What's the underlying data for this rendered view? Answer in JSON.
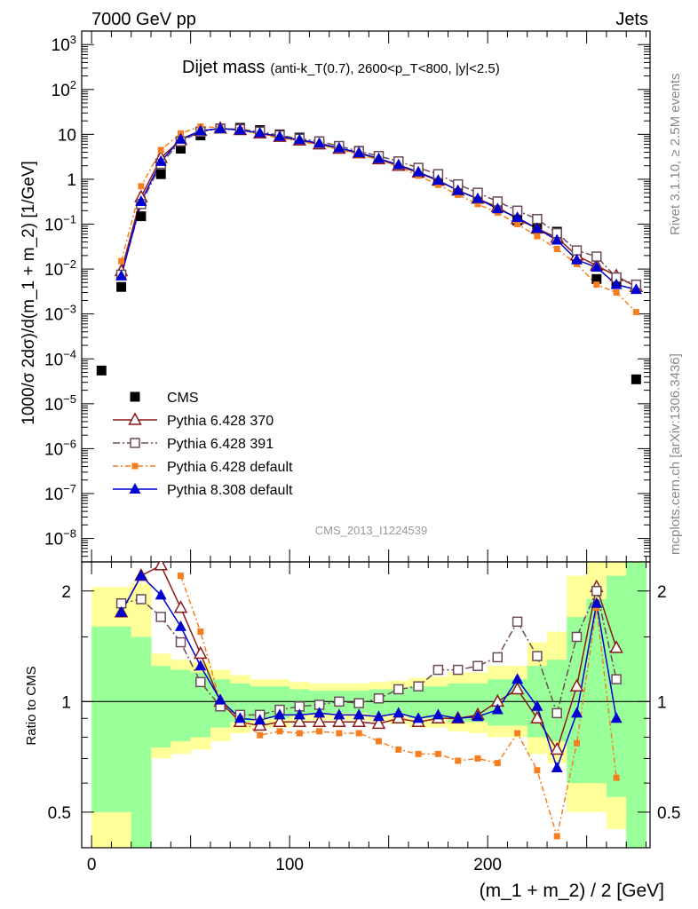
{
  "header": {
    "left": "7000 GeV pp",
    "right": "Jets",
    "side_top": "Rivet 3.1.10, ≥ 2.5M events",
    "side_bottom": "mcplots.cern.ch [arXiv:1306.3436]",
    "analysis": "CMS_2013_I1224539"
  },
  "colors": {
    "cms": "#000000",
    "p6_370": "#8b1a1a",
    "p6_391": "#6b4a5a",
    "p6_default": "#f57f20",
    "p8_default": "#0000d0",
    "band_inner": "#99ff99",
    "band_outer": "#ffff99"
  },
  "chart_data": [
    {
      "type": "line",
      "title_main": "Dijet mass",
      "title_sub": "(anti-k_T(0.7), 2600<p_T<800, |y|<2.5)",
      "ylabel": "1000/σ 2dσ)/d(m_1 + m_2) [1/GeV]",
      "xlim": [
        -5,
        282
      ],
      "ylim": [
        3e-09,
        2000
      ],
      "yscale": "log",
      "yticks": [
        "10^{-8}",
        "10^{-7}",
        "10^{-6}",
        "10^{-5}",
        "10^{-4}",
        "10^{-3}",
        "10^{-2}",
        "10^{-1}",
        "1",
        "10",
        "10^{2}",
        "10^{3}"
      ],
      "legend_position": "lower-left",
      "x": [
        5,
        15,
        25,
        35,
        45,
        55,
        65,
        75,
        85,
        95,
        105,
        115,
        125,
        135,
        145,
        155,
        165,
        175,
        185,
        195,
        205,
        215,
        225,
        235,
        245,
        255,
        265,
        275
      ],
      "series": [
        {
          "name": "CMS",
          "marker": "square-filled",
          "color": "#000000",
          "values": [
            5.5e-05,
            0.004,
            0.15,
            1.3,
            4.8,
            9.5,
            13.5,
            14.0,
            12.5,
            10.0,
            8.5,
            7.0,
            5.5,
            4.3,
            3.2,
            2.3,
            1.6,
            1.05,
            0.62,
            0.4,
            0.24,
            0.12,
            0.083,
            0.068,
            0.017,
            0.006,
            0.005,
            3.5e-05
          ]
        },
        {
          "name": "Pythia 6.428 370",
          "marker": "triangle-open",
          "color": "#8b1a1a",
          "values": [
            null,
            0.009,
            0.4,
            3.0,
            7.5,
            12.0,
            13.5,
            12.5,
            10.5,
            8.8,
            7.3,
            6.0,
            4.8,
            3.8,
            2.8,
            2.0,
            1.4,
            0.93,
            0.56,
            0.37,
            0.24,
            0.13,
            0.08,
            0.05,
            0.02,
            0.012,
            0.007,
            0.004
          ]
        },
        {
          "name": "Pythia 6.428 391",
          "marker": "square-open",
          "color": "#6b4a5a",
          "values": [
            null,
            0.0075,
            0.28,
            2.2,
            7.0,
            11.5,
            13.5,
            13.0,
            11.5,
            9.5,
            8.0,
            7.0,
            5.5,
            4.2,
            3.3,
            2.5,
            1.8,
            1.3,
            0.77,
            0.5,
            0.32,
            0.2,
            0.13,
            0.063,
            0.026,
            0.019,
            0.0065,
            0.0045
          ]
        },
        {
          "name": "Pythia 6.428 default",
          "marker": "square-small",
          "color": "#f57f20",
          "values": [
            null,
            0.015,
            0.7,
            4.5,
            10.5,
            15.0,
            14.0,
            12.5,
            10.0,
            8.3,
            7.0,
            5.8,
            4.6,
            3.6,
            2.7,
            1.9,
            1.2,
            0.75,
            0.45,
            0.28,
            0.18,
            0.1,
            0.054,
            0.028,
            0.013,
            0.0045,
            0.003,
            0.0011
          ]
        },
        {
          "name": "Pythia 8.308 default",
          "marker": "triangle-filled",
          "color": "#0000d0",
          "values": [
            null,
            0.007,
            0.32,
            2.5,
            7.8,
            12.0,
            13.5,
            12.5,
            10.8,
            9.0,
            7.6,
            6.3,
            5.0,
            3.9,
            2.9,
            2.1,
            1.45,
            0.95,
            0.56,
            0.37,
            0.22,
            0.14,
            0.08,
            0.044,
            0.016,
            0.011,
            0.0045,
            0.0035
          ]
        }
      ]
    },
    {
      "type": "line",
      "ylabel": "Ratio to CMS",
      "xlabel": "(m_1 + m_2) / 2 [GeV]",
      "xlim": [
        -5,
        282
      ],
      "ylim": [
        0.4,
        2.4
      ],
      "yscale": "log",
      "yticks": [
        "0.5",
        "1",
        "2"
      ],
      "xticks": [
        "0",
        "100",
        "200"
      ],
      "x": [
        15,
        25,
        35,
        45,
        55,
        65,
        75,
        85,
        95,
        105,
        115,
        125,
        135,
        145,
        155,
        165,
        175,
        185,
        195,
        205,
        215,
        225,
        235,
        245,
        255,
        265
      ],
      "band_edges": [
        0,
        10,
        20,
        30,
        40,
        50,
        60,
        70,
        80,
        90,
        100,
        110,
        120,
        130,
        140,
        150,
        160,
        170,
        180,
        190,
        200,
        210,
        220,
        230,
        240,
        250,
        260,
        270,
        280
      ],
      "band_inner_low": [
        0.5,
        0.5,
        0.4,
        0.75,
        0.78,
        0.8,
        0.85,
        0.88,
        0.9,
        0.9,
        0.92,
        0.93,
        0.93,
        0.93,
        0.92,
        0.92,
        0.9,
        0.9,
        0.88,
        0.88,
        0.86,
        0.86,
        0.8,
        0.78,
        0.6,
        0.6,
        0.55,
        0.4
      ],
      "band_inner_high": [
        1.6,
        1.6,
        1.5,
        1.25,
        1.22,
        1.2,
        1.15,
        1.12,
        1.1,
        1.1,
        1.08,
        1.07,
        1.07,
        1.07,
        1.08,
        1.08,
        1.1,
        1.1,
        1.12,
        1.12,
        1.15,
        1.15,
        1.25,
        1.3,
        1.7,
        1.9,
        2.2,
        2.5
      ],
      "band_outer_low": [
        0.4,
        0.4,
        0.3,
        0.7,
        0.72,
        0.74,
        0.78,
        0.82,
        0.85,
        0.85,
        0.88,
        0.89,
        0.89,
        0.89,
        0.88,
        0.87,
        0.85,
        0.85,
        0.83,
        0.82,
        0.8,
        0.8,
        0.72,
        0.68,
        0.5,
        0.5,
        0.45,
        0.35
      ],
      "band_outer_high": [
        2.05,
        2.05,
        2.1,
        1.35,
        1.3,
        1.28,
        1.22,
        1.18,
        1.15,
        1.15,
        1.13,
        1.12,
        1.12,
        1.12,
        1.13,
        1.14,
        1.16,
        1.17,
        1.2,
        1.2,
        1.25,
        1.25,
        1.45,
        1.55,
        2.2,
        2.5,
        2.8,
        3.0
      ],
      "series": [
        {
          "name": "Pythia 6.428 370",
          "marker": "triangle-open",
          "color": "#8b1a1a",
          "values": [
            1.75,
            2.2,
            2.35,
            1.8,
            1.35,
            1.0,
            0.88,
            0.86,
            0.88,
            0.88,
            0.88,
            0.88,
            0.88,
            0.87,
            0.9,
            0.88,
            0.9,
            0.9,
            0.92,
            1.0,
            1.08,
            0.9,
            0.74,
            1.1,
            2.05,
            1.4
          ]
        },
        {
          "name": "Pythia 6.428 391",
          "marker": "square-open",
          "color": "#6b4a5a",
          "values": [
            1.85,
            1.9,
            1.7,
            1.45,
            1.13,
            0.97,
            0.92,
            0.92,
            0.95,
            0.97,
            0.98,
            1.0,
            0.99,
            1.02,
            1.08,
            1.1,
            1.22,
            1.22,
            1.25,
            1.32,
            1.65,
            1.33,
            0.93,
            1.5,
            2.0,
            1.15
          ]
        },
        {
          "name": "Pythia 6.428 default",
          "marker": "square-small",
          "color": "#f57f20",
          "values": [
            null,
            null,
            null,
            2.2,
            1.55,
            1.0,
            0.9,
            0.81,
            0.83,
            0.82,
            0.83,
            0.82,
            0.82,
            0.78,
            0.74,
            0.72,
            0.72,
            0.69,
            0.7,
            0.68,
            0.82,
            0.65,
            0.43,
            0.77,
            1.8,
            0.62
          ]
        },
        {
          "name": "Pythia 8.308 default",
          "marker": "triangle-filled",
          "color": "#0000d0",
          "values": [
            1.75,
            2.2,
            1.95,
            1.6,
            1.25,
            1.01,
            0.9,
            0.89,
            0.92,
            0.92,
            0.93,
            0.92,
            0.92,
            0.91,
            0.93,
            0.9,
            0.92,
            0.9,
            0.91,
            0.95,
            1.15,
            0.97,
            0.66,
            0.93,
            1.85,
            0.9
          ]
        }
      ]
    }
  ]
}
